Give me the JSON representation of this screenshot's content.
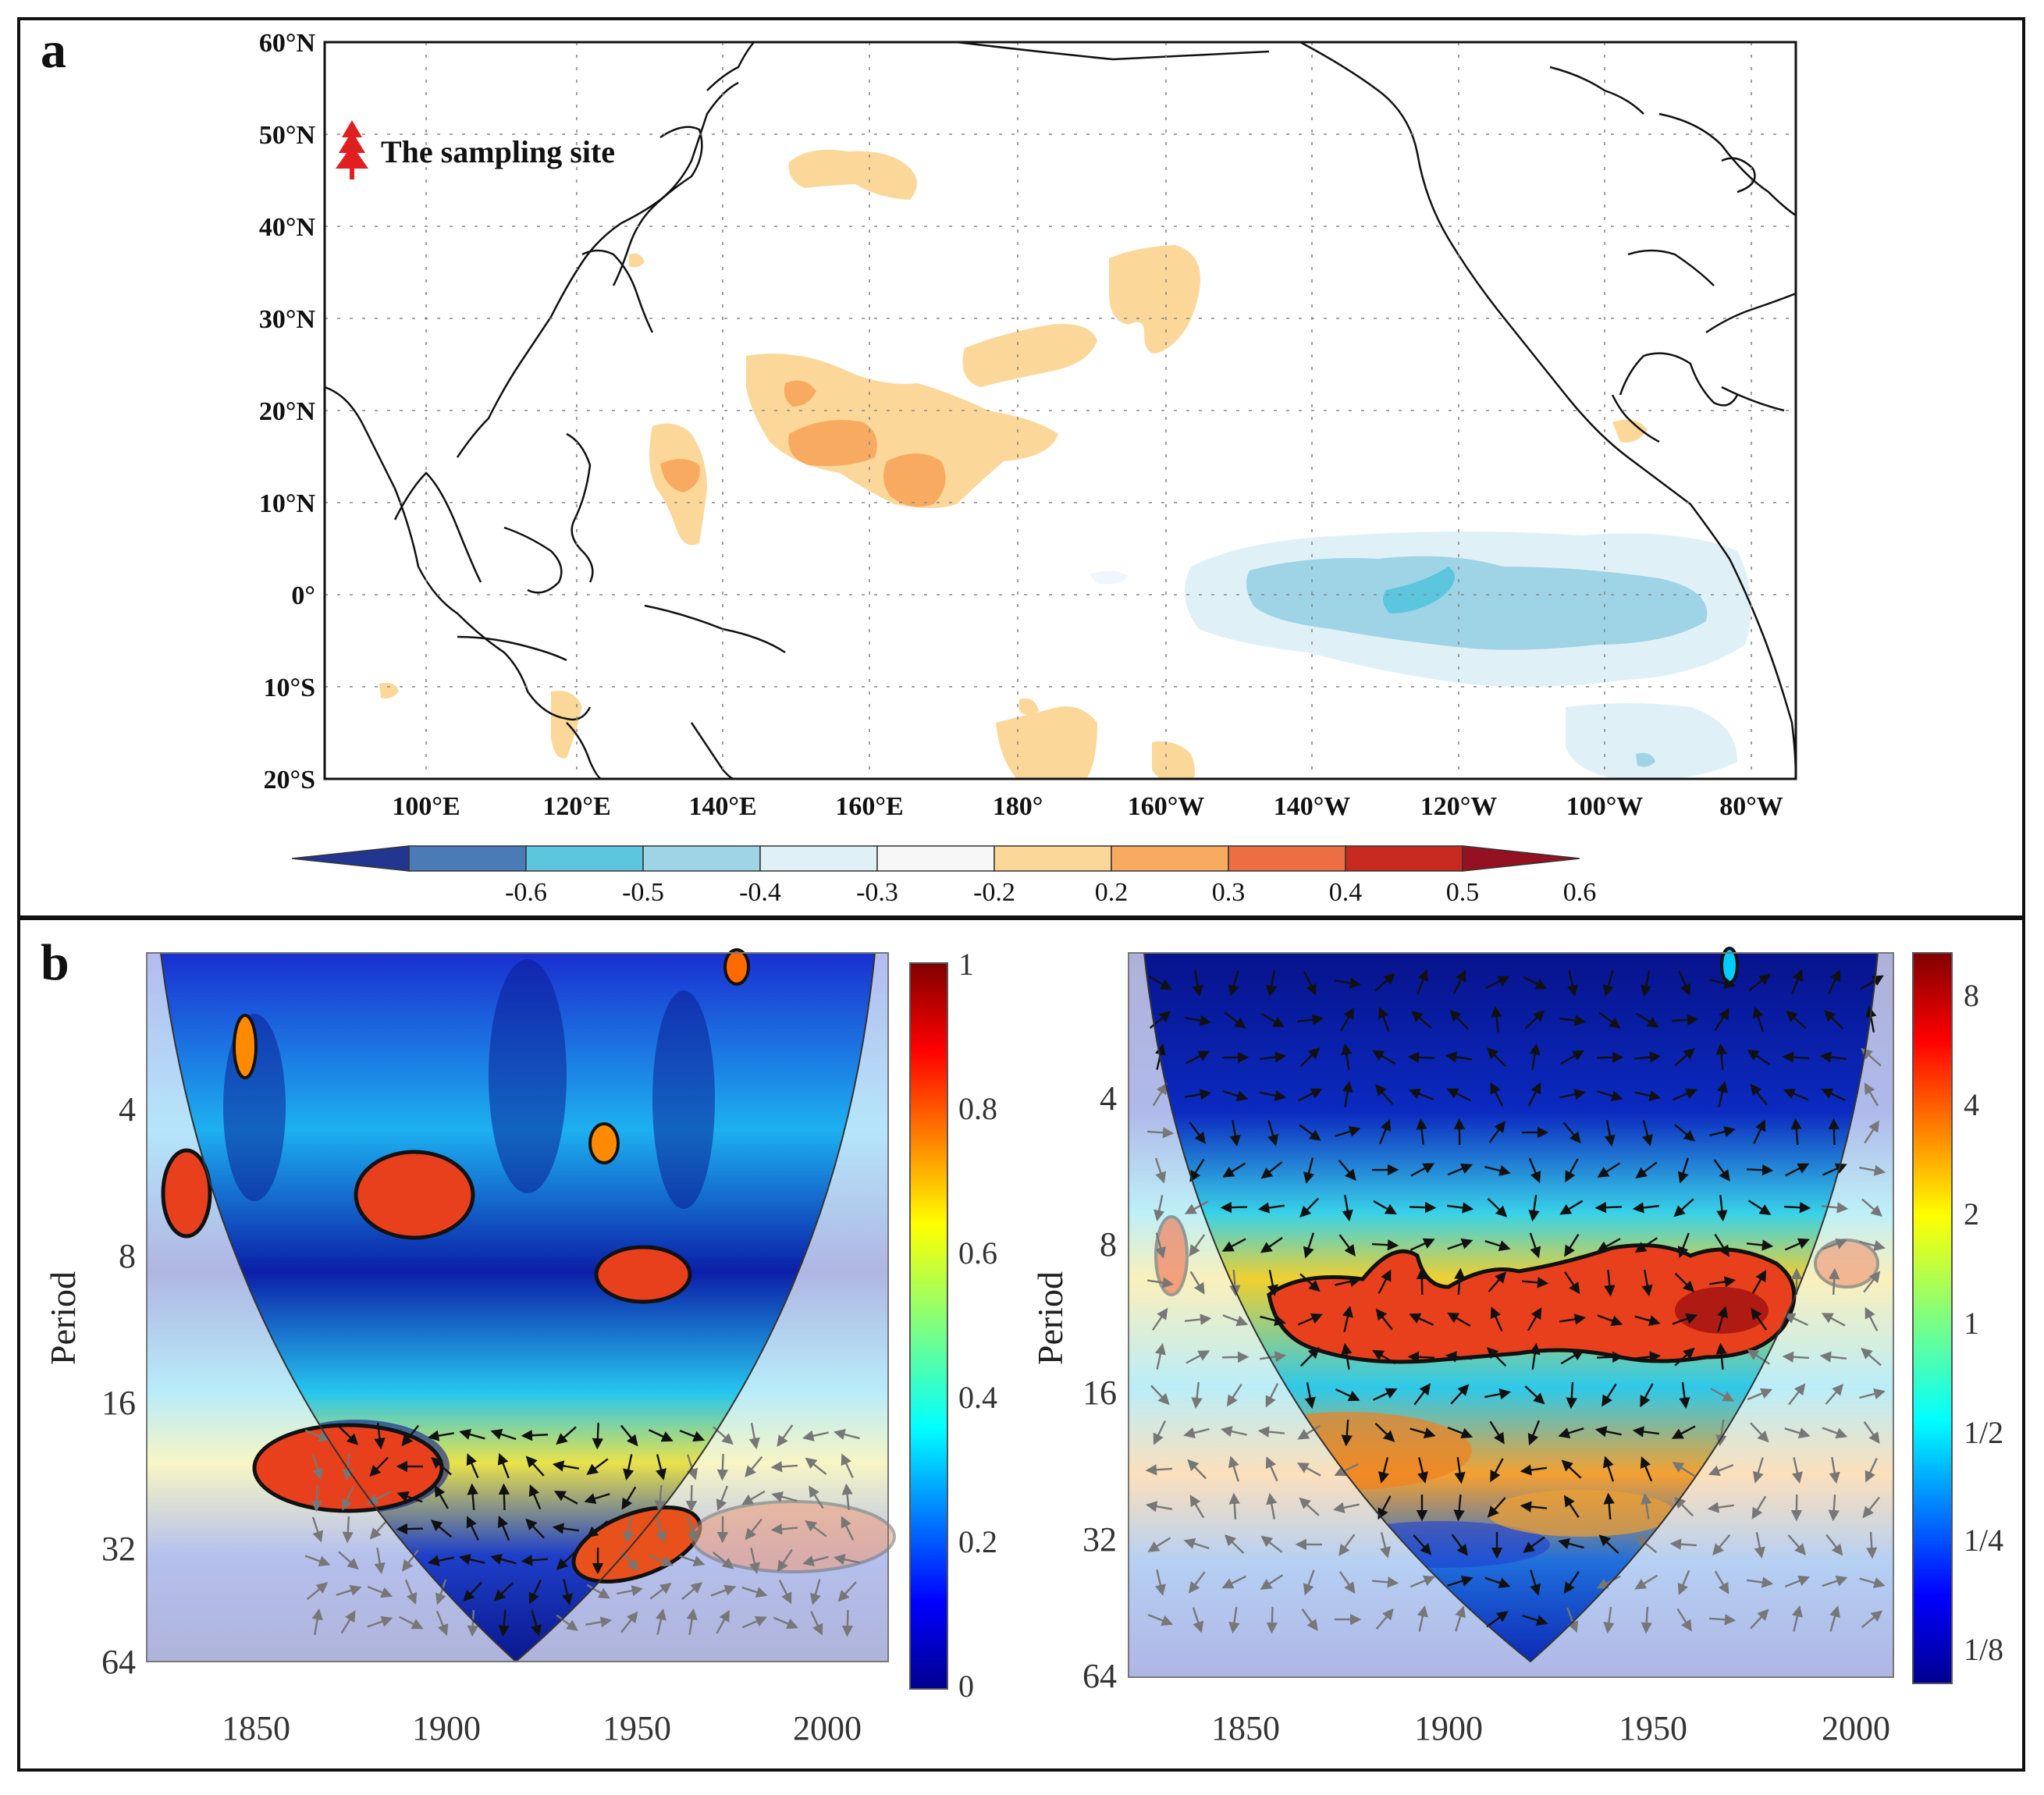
{
  "panel_a": {
    "letter": "a",
    "legend_label": "The sampling site",
    "lat_labels": [
      "60°N",
      "50°N",
      "40°N",
      "30°N",
      "20°N",
      "10°N",
      "0°",
      "10°S",
      "20°S"
    ],
    "lon_labels": [
      "100°E",
      "120°E",
      "140°E",
      "160°E",
      "180°",
      "160°W",
      "140°W",
      "120°W",
      "100°W",
      "80°W"
    ],
    "colorbar": {
      "ticks": [
        "-0.6",
        "-0.5",
        "-0.4",
        "-0.3",
        "-0.2",
        "0.2",
        "0.3",
        "0.4",
        "0.5",
        "0.6"
      ],
      "colors": [
        "#23368f",
        "#4a7bb7",
        "#5cc6de",
        "#9fd3e6",
        "#dff1f7",
        "#f7f7f7",
        "#fbd89a",
        "#f8ab60",
        "#ee6e44",
        "#c8291f",
        "#951122"
      ]
    }
  },
  "panel_b": {
    "letter": "b",
    "left": {
      "ylabel": "Period",
      "yticks": [
        "4",
        "8",
        "16",
        "32",
        "64"
      ],
      "xticks": [
        "1850",
        "1900",
        "1950",
        "2000"
      ],
      "colorbar_ticks": [
        "1",
        "0.8",
        "0.6",
        "0.4",
        "0.2",
        "0"
      ]
    },
    "right": {
      "ylabel": "Period",
      "yticks": [
        "4",
        "8",
        "16",
        "32",
        "64"
      ],
      "xticks": [
        "1850",
        "1900",
        "1950",
        "2000"
      ],
      "colorbar_ticks": [
        "8",
        "4",
        "2",
        "1",
        "1/2",
        "1/4",
        "1/8"
      ]
    }
  }
}
